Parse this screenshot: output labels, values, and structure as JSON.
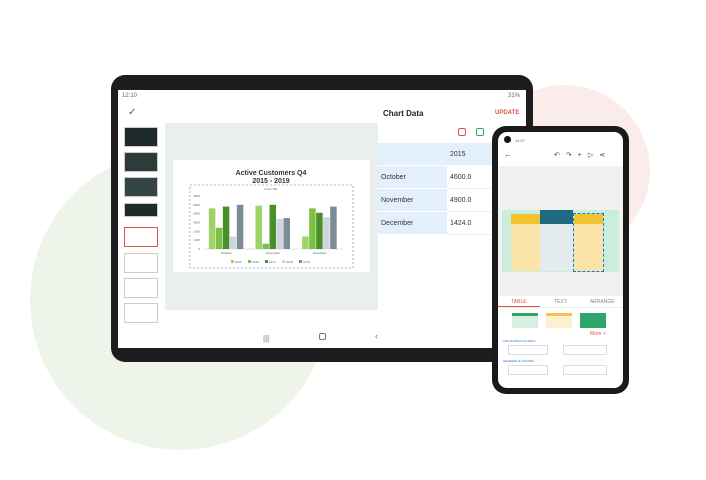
{
  "tablet": {
    "status_time": "12:10",
    "status_battery": "31%",
    "toolbar": {
      "title": "Chart Data",
      "update_label": "UPDATE"
    },
    "chart_data": {
      "type": "bar",
      "title": "Active Customers Q4\n2015 - 2019",
      "subtitle": "Chart Title",
      "categories": [
        "October",
        "November",
        "December"
      ],
      "series": [
        {
          "name": "2015",
          "values": [
            4600,
            4900,
            1424
          ]
        },
        {
          "name": "2016",
          "values": [
            2400,
            600,
            4600
          ]
        },
        {
          "name": "2017",
          "values": [
            4800,
            5000,
            4100
          ]
        },
        {
          "name": "2018",
          "values": [
            1400,
            3400,
            3600
          ]
        },
        {
          "name": "2019",
          "values": [
            5000,
            3500,
            4800
          ]
        }
      ],
      "colors": [
        "#9ed36a",
        "#7cc144",
        "#4b8f2a",
        "#cdd6dc",
        "#7d8b94"
      ],
      "ylim": [
        0,
        6000
      ],
      "yticks": [
        0,
        1000,
        2000,
        3000,
        4000,
        5000,
        6000
      ],
      "legend": "bottom",
      "grid": false
    },
    "table": {
      "header": "2015",
      "rows": [
        {
          "label": "October",
          "value": "4600.0"
        },
        {
          "label": "November",
          "value": "4900.0"
        },
        {
          "label": "December",
          "value": "1424.0"
        }
      ]
    }
  },
  "phone": {
    "status_time": "14:07",
    "tabs": [
      {
        "label": "TABLE"
      },
      {
        "label": "TEXT"
      },
      {
        "label": "ARRANGE"
      }
    ],
    "more_label": "More >",
    "section1": "ADD ROWS/COLUMNS",
    "section2": "HEADERS & FOOTER",
    "accent": "#d9534f"
  }
}
